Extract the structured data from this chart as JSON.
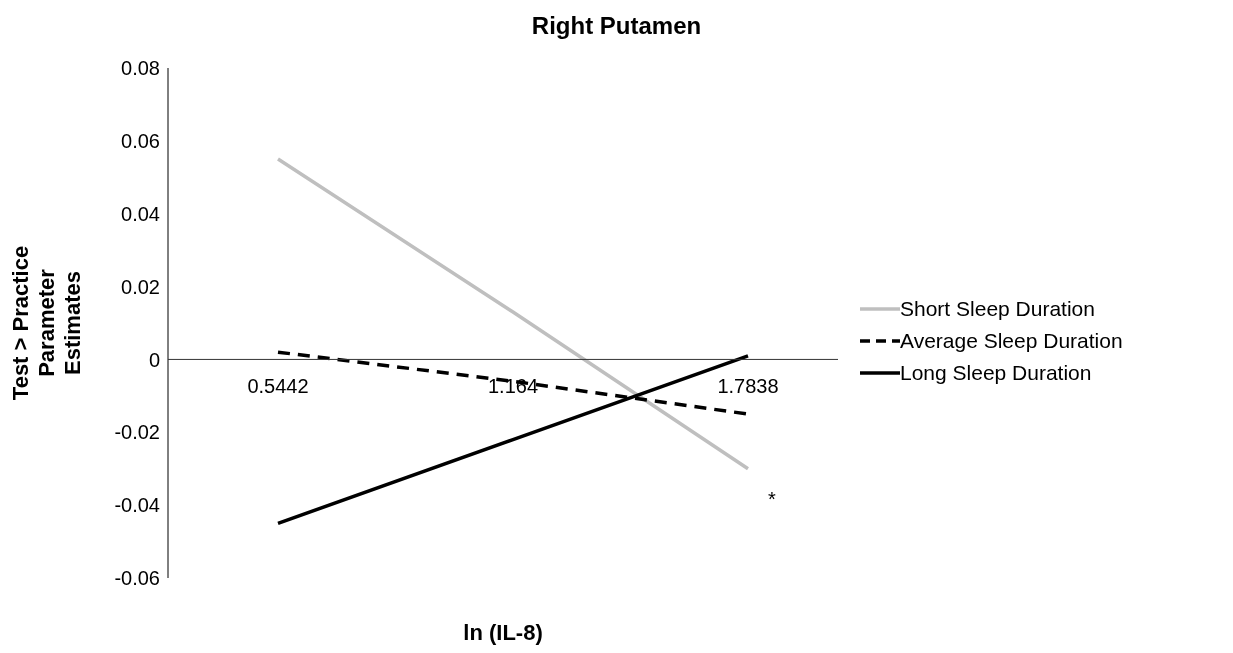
{
  "chart_data": {
    "type": "line",
    "title": "Right Putamen",
    "xlabel": "ln (IL-8)",
    "ylabel": "Test > Practice Parameter Estimates",
    "categories": [
      "0.5442",
      "1.164",
      "1.7838"
    ],
    "series": [
      {
        "name": "Short Sleep Duration",
        "color": "#bfbfbf",
        "values": [
          0.055,
          0.013,
          -0.03
        ]
      },
      {
        "name": "Average Sleep Duration",
        "color": "#000000",
        "values": [
          0.002,
          -0.006,
          -0.015
        ],
        "line_style": "dashed"
      },
      {
        "name": "Long Sleep Duration",
        "color": "#000000",
        "values": [
          -0.045,
          -0.022,
          0.001
        ]
      }
    ],
    "ylim": [
      -0.06,
      0.08
    ],
    "yticks": [
      -0.06,
      -0.04,
      -0.02,
      0,
      0.02,
      0.04,
      0.06,
      0.08
    ],
    "annotations": [
      "*"
    ],
    "legend": "right",
    "grid": false,
    "marker": "none",
    "line_style": "solid"
  }
}
